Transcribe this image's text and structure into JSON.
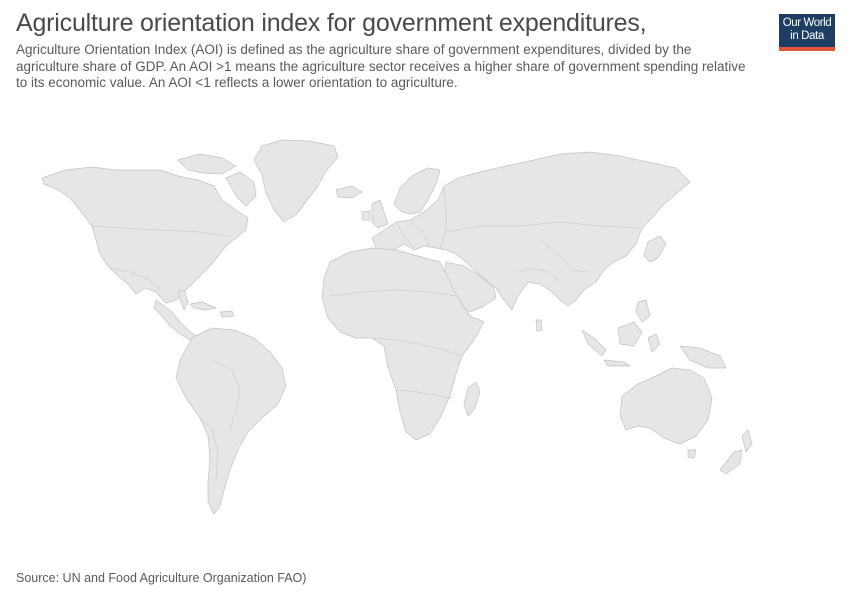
{
  "header": {
    "title": "Agriculture orientation index for government expenditures,",
    "subtitle": "Agriculture Orientation Index (AOI) is defined as the agriculture share of government expenditures, divided by the agriculture share of GDP. An AOI >1 means the agriculture sector receives a higher share of government spending relative to its economic value. An AOI <1 reflects a lower orientation to agriculture."
  },
  "logo": {
    "line1": "Our World",
    "line2": "in Data",
    "color": "#1d3d63",
    "accent": "#e2553b"
  },
  "map": {
    "fill_color": "#e6e6e6",
    "border_color": "#c2c2c2",
    "data_shown": "none"
  },
  "footer": {
    "source": "Source: UN and Food Agriculture Organization FAO)"
  }
}
